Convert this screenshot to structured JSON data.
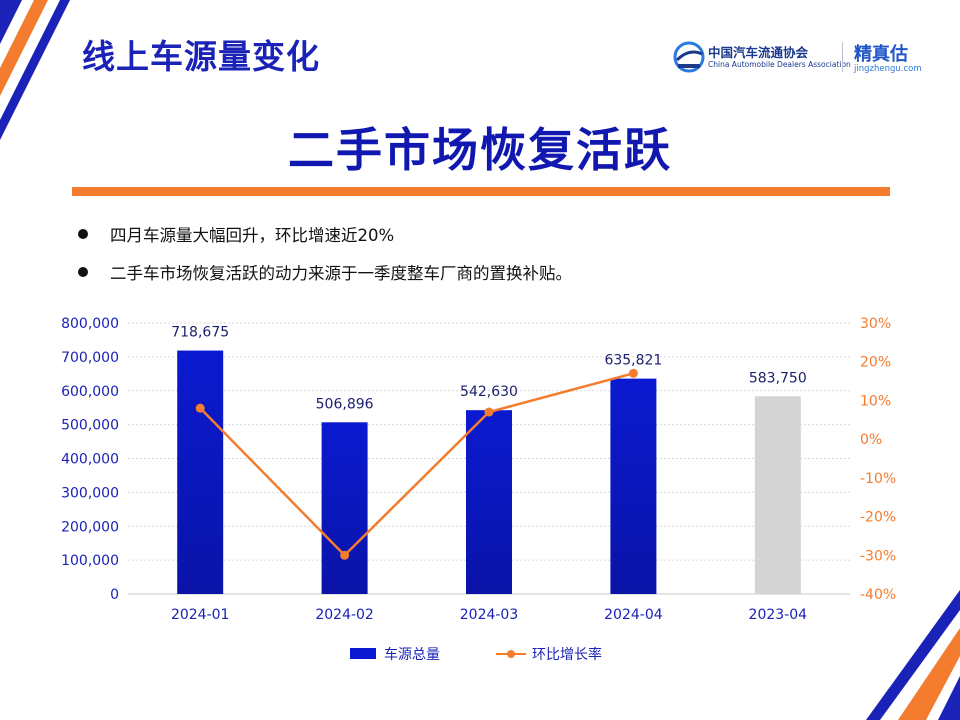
{
  "slide": {
    "title": "线上车源量变化",
    "headline": "二手市场恢复活跃",
    "bullets": [
      "四月车源量大幅回升，环比增速近20%",
      "二手车市场恢复活跃的动力来源于一季度整车厂商的置换补贴。"
    ]
  },
  "logos": {
    "cada_cn": "中国汽车流通协会",
    "cada_en": "China Automobile Dealers Association",
    "jzg_cn": "精真估",
    "jzg_en": "jingzhengu.com"
  },
  "colors": {
    "primary_blue": "#1a22b8",
    "bar_blue": "#0b1ad0",
    "bar_gray": "#d4d4d4",
    "line_orange": "#f47c2f"
  },
  "chart_data": {
    "type": "bar",
    "categories": [
      "2024-01",
      "2024-02",
      "2024-03",
      "2024-04",
      "2023-04"
    ],
    "series": [
      {
        "name": "车源总量",
        "type": "bar",
        "axis": "left",
        "values": [
          718675,
          506896,
          542630,
          635821,
          583750
        ],
        "labels": [
          "718,675",
          "506,896",
          "542,630",
          "635,821",
          "583,750"
        ]
      },
      {
        "name": "环比增长率",
        "type": "line",
        "axis": "right",
        "values": [
          8,
          -30,
          7,
          17,
          null
        ]
      }
    ],
    "y_left": {
      "min": 0,
      "max": 800000,
      "ticks": [
        "0",
        "100,000",
        "200,000",
        "300,000",
        "400,000",
        "500,000",
        "600,000",
        "700,000",
        "800,000"
      ]
    },
    "y_right": {
      "min": -40,
      "max": 30,
      "ticks": [
        "-40%",
        "-30%",
        "-20%",
        "-10%",
        "0%",
        "10%",
        "20%",
        "30%"
      ]
    },
    "grid": true,
    "legend_position": "bottom"
  }
}
